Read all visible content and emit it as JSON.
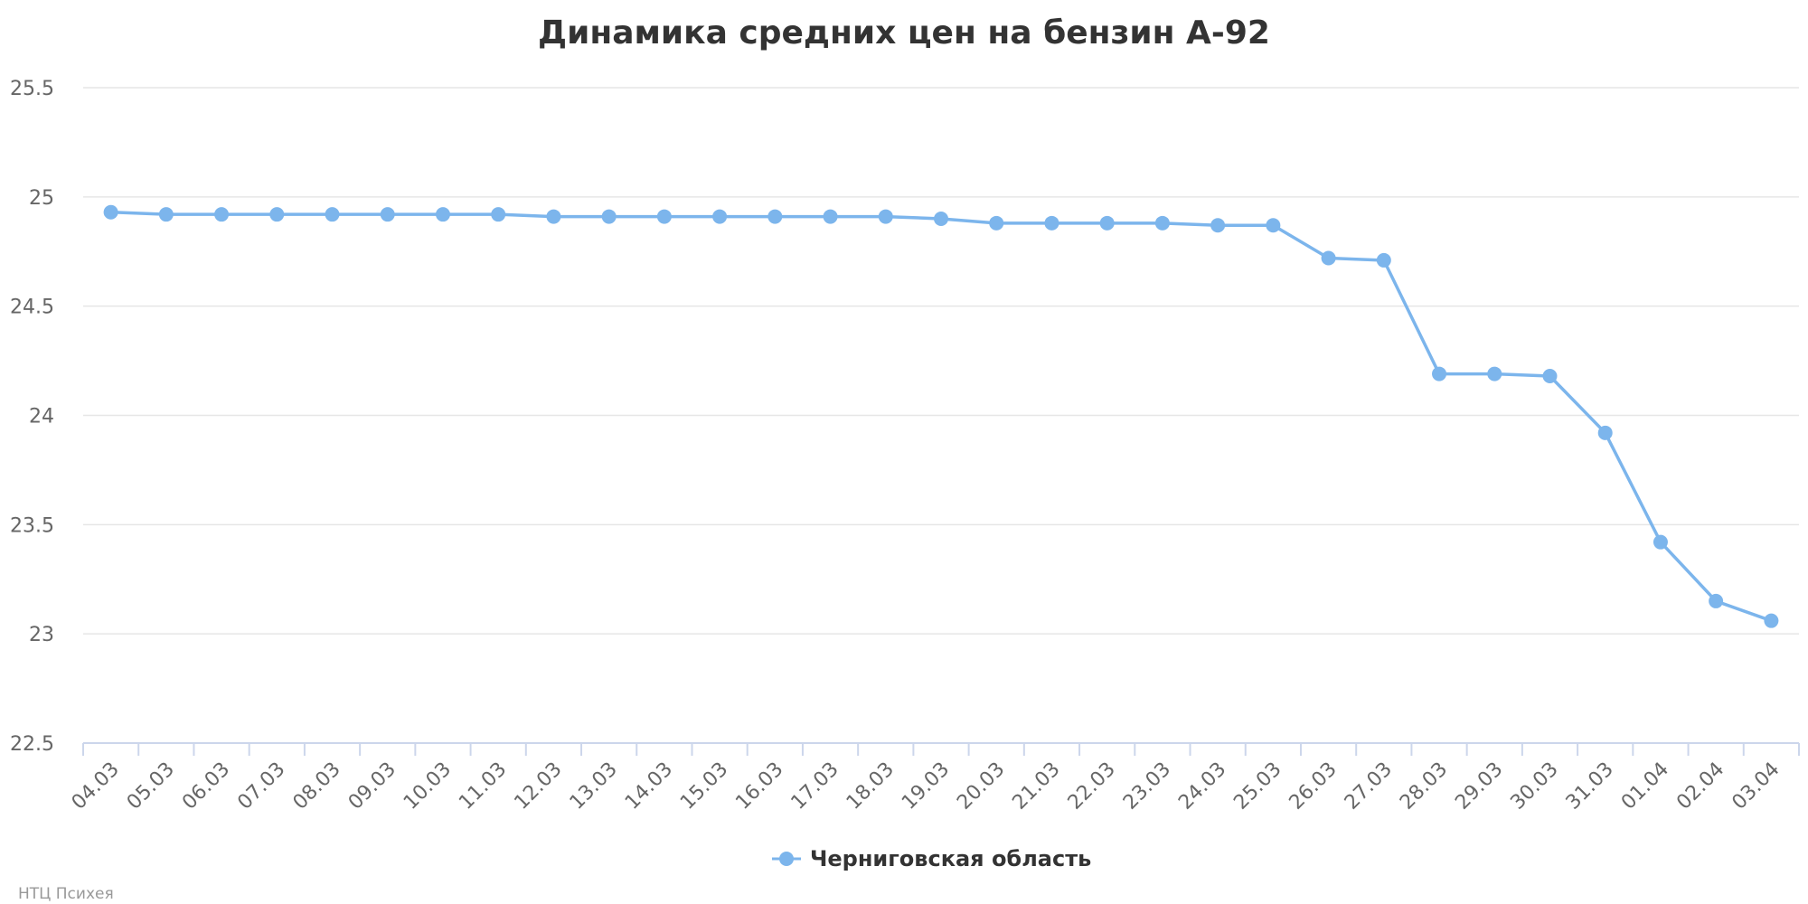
{
  "chart_data": {
    "type": "line",
    "title": "Динамика средних цен на бензин А-92",
    "xlabel": "",
    "ylabel": "",
    "categories": [
      "04.03",
      "05.03",
      "06.03",
      "07.03",
      "08.03",
      "09.03",
      "10.03",
      "11.03",
      "12.03",
      "13.03",
      "14.03",
      "15.03",
      "16.03",
      "17.03",
      "18.03",
      "19.03",
      "20.03",
      "21.03",
      "22.03",
      "23.03",
      "24.03",
      "25.03",
      "26.03",
      "27.03",
      "28.03",
      "29.03",
      "30.03",
      "31.03",
      "01.04",
      "02.04",
      "03.04"
    ],
    "series": [
      {
        "name": "Черниговская область",
        "color": "#7cb5ec",
        "values": [
          24.93,
          24.92,
          24.92,
          24.92,
          24.92,
          24.92,
          24.92,
          24.92,
          24.91,
          24.91,
          24.91,
          24.91,
          24.91,
          24.91,
          24.91,
          24.9,
          24.88,
          24.88,
          24.88,
          24.88,
          24.87,
          24.87,
          24.72,
          24.71,
          24.19,
          24.19,
          24.18,
          23.92,
          23.42,
          23.15,
          23.06
        ]
      }
    ],
    "ylim": [
      22.5,
      25.5
    ],
    "yticks": [
      "22.5",
      "23",
      "23.5",
      "24",
      "24.5",
      "25",
      "25.5"
    ],
    "grid": true,
    "legend_position": "bottom-center",
    "credit": "НТЦ Психея"
  }
}
